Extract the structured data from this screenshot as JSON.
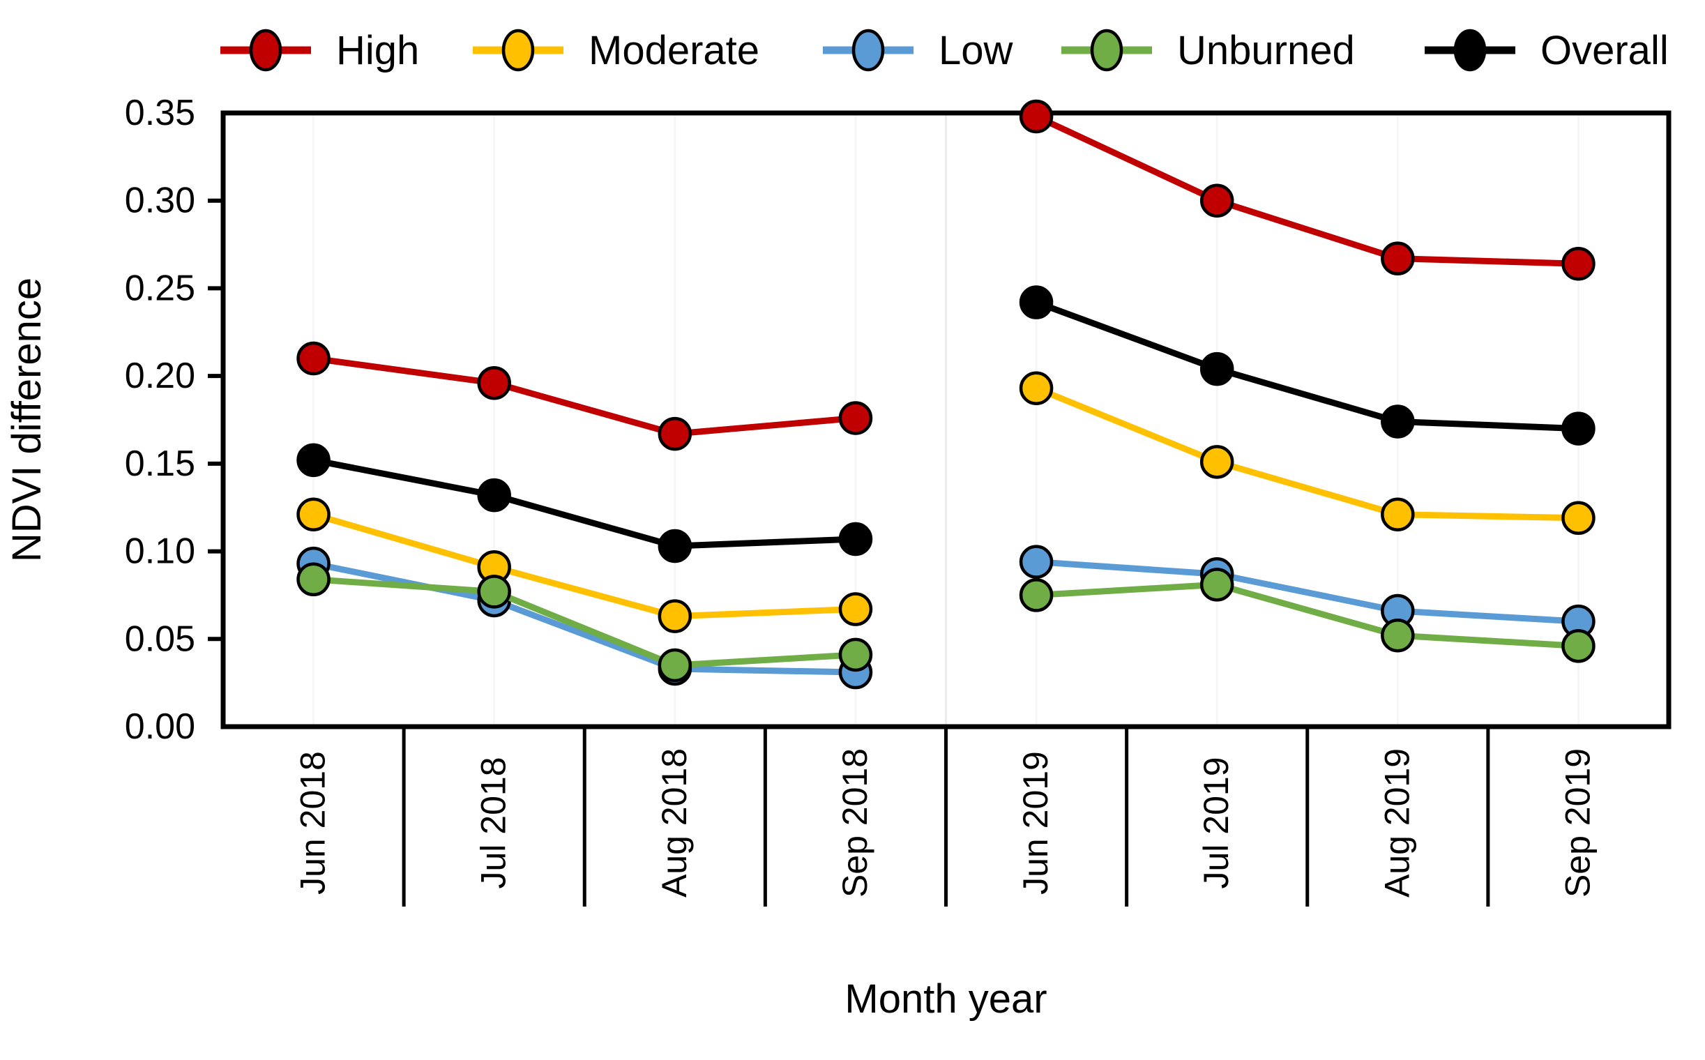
{
  "chart_data": {
    "type": "line",
    "title": "",
    "xlabel": "Month year",
    "ylabel": "NDVI difference",
    "categories": [
      "Jun 2018",
      "Jul 2018",
      "Aug 2018",
      "Sep 2018",
      "Jun 2019",
      "Jul 2019",
      "Aug 2019",
      "Sep 2019"
    ],
    "series": [
      {
        "name": "High",
        "color": "#c00000",
        "values": [
          0.21,
          0.196,
          0.167,
          0.176,
          0.348,
          0.3,
          0.267,
          0.264
        ]
      },
      {
        "name": "Moderate",
        "color": "#ffc000",
        "values": [
          0.121,
          0.091,
          0.063,
          0.067,
          0.193,
          0.151,
          0.121,
          0.119
        ]
      },
      {
        "name": "Low",
        "color": "#5b9bd5",
        "values": [
          0.093,
          0.072,
          0.033,
          0.031,
          0.094,
          0.087,
          0.066,
          0.06
        ]
      },
      {
        "name": "Unburned",
        "color": "#70ad47",
        "values": [
          0.084,
          0.077,
          0.035,
          0.041,
          0.075,
          0.081,
          0.052,
          0.046
        ]
      },
      {
        "name": "Overall",
        "color": "#000000",
        "values": [
          0.152,
          0.132,
          0.103,
          0.107,
          0.242,
          0.204,
          0.174,
          0.17
        ]
      }
    ],
    "ylim": [
      0.0,
      0.35
    ],
    "ytick_step": 0.05,
    "ytick_labels": [
      "0.00",
      "0.05",
      "0.10",
      "0.15",
      "0.20",
      "0.25",
      "0.30",
      "0.35"
    ],
    "line_gap_after_category_index": 3,
    "legend_position": "top",
    "grid": "faint vertical year separator between Sep 2018 and Jun 2019",
    "marker": "filled circle with black outline"
  }
}
